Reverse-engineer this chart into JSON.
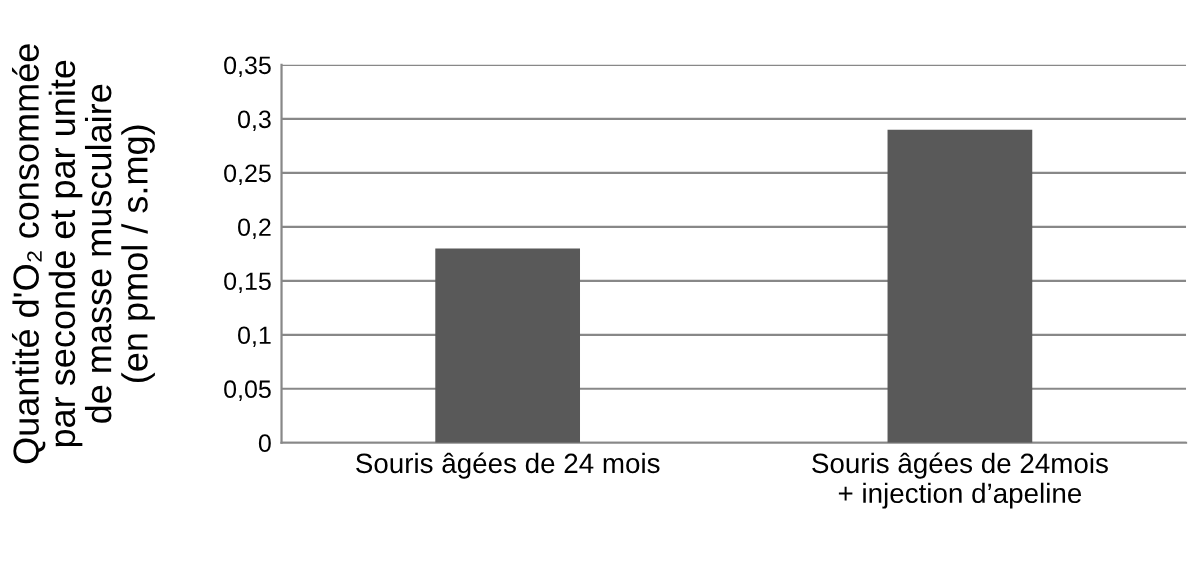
{
  "chart_data": {
    "type": "bar",
    "ylabel": "Quantité d'O₂ consommée\npar seconde et par unite\nde masse musculaire\n(en pmol / s.mg)",
    "categories": [
      "Souris âgées de 24 mois",
      "Souris âgées de 24mois\n+ injection d’apeline"
    ],
    "values": [
      0.18,
      0.29
    ],
    "color": "#595959",
    "ylim": [
      0,
      0.35
    ],
    "yticks": [
      {
        "value": 0,
        "label": "0"
      },
      {
        "value": 0.05,
        "label": "0,05"
      },
      {
        "value": 0.1,
        "label": "0,1"
      },
      {
        "value": 0.15,
        "label": "0,15"
      },
      {
        "value": 0.2,
        "label": "0,2"
      },
      {
        "value": 0.25,
        "label": "0,25"
      },
      {
        "value": 0.3,
        "label": "0,3"
      },
      {
        "value": 0.35,
        "label": "0,35"
      }
    ],
    "grid": "y"
  }
}
